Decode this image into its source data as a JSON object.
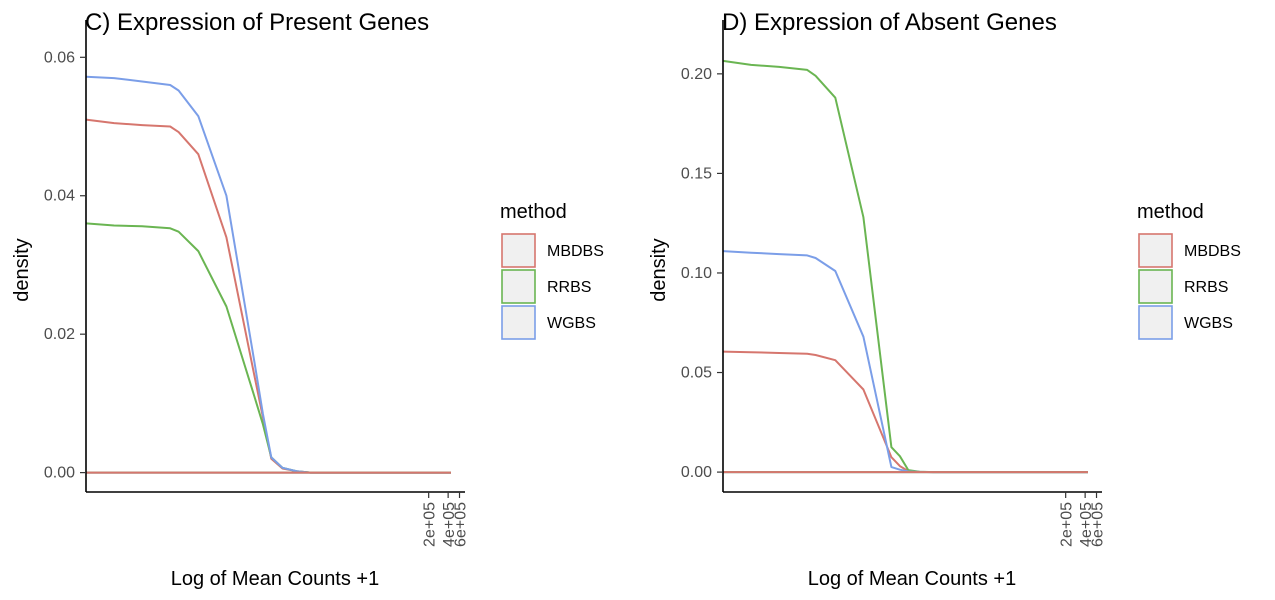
{
  "chart_data": [
    {
      "type": "line",
      "title": "C) Expression of Present Genes",
      "xlabel": "Log of Mean Counts +1",
      "ylabel": "density",
      "yticks": [
        "0.00",
        "0.02",
        "0.04",
        "0.06"
      ],
      "ytick_values": [
        0,
        0.02,
        0.04,
        0.06
      ],
      "ylim": [
        -0.0028,
        0.0625
      ],
      "xticks": [
        "2e+05",
        "4e+05",
        "6e+05"
      ],
      "xtick_values": [
        200000,
        400000,
        600000
      ],
      "xaxis": "log1p",
      "xlim_log": [
        0,
        13.5
      ],
      "legend": {
        "title": "method",
        "position": "right",
        "entries": [
          "MBDBS",
          "RRBS",
          "WGBS"
        ]
      },
      "grid": false,
      "x": [
        0,
        1,
        2,
        3,
        3.3,
        4,
        5,
        6,
        6.3,
        6.6,
        7,
        7.5,
        8,
        9,
        10,
        11,
        12,
        13
      ],
      "series": [
        {
          "name": "MBDBS",
          "color": "#d6766e",
          "values": [
            0.051,
            0.0505,
            0.0502,
            0.05,
            0.0492,
            0.046,
            0.034,
            0.014,
            0.008,
            0.002,
            0.0006,
            0.0002,
            0,
            0,
            0,
            0,
            0,
            0
          ]
        },
        {
          "name": "RRBS",
          "color": "#6ab552",
          "values": [
            0.036,
            0.0357,
            0.0356,
            0.0353,
            0.0348,
            0.032,
            0.024,
            0.011,
            0.007,
            0.0022,
            0.0007,
            0.0002,
            0,
            0,
            0,
            0,
            0,
            0
          ]
        },
        {
          "name": "WGBS",
          "color": "#7b9ee8",
          "values": [
            0.0572,
            0.057,
            0.0565,
            0.056,
            0.0552,
            0.0515,
            0.04,
            0.016,
            0.0085,
            0.0022,
            0.0007,
            0.0002,
            0,
            0,
            0,
            0,
            0,
            0
          ]
        }
      ]
    },
    {
      "type": "line",
      "title": "D) Expression of Absent Genes",
      "xlabel": "Log of Mean Counts +1",
      "ylabel": "density",
      "yticks": [
        "0.00",
        "0.05",
        "0.10",
        "0.15",
        "0.20"
      ],
      "ytick_values": [
        0,
        0.05,
        0.1,
        0.15,
        0.2
      ],
      "ylim": [
        -0.01,
        0.217
      ],
      "xticks": [
        "2e+05",
        "4e+05",
        "6e+05"
      ],
      "xtick_values": [
        200000,
        400000,
        600000
      ],
      "xaxis": "log1p",
      "xlim_log": [
        0,
        13.5
      ],
      "legend": {
        "title": "method",
        "position": "right",
        "entries": [
          "MBDBS",
          "RRBS",
          "WGBS"
        ]
      },
      "grid": false,
      "x": [
        0,
        1,
        2,
        3,
        3.3,
        4,
        5,
        6,
        6.3,
        6.6,
        7,
        7.5,
        8,
        9,
        10,
        11,
        12,
        13
      ],
      "series": [
        {
          "name": "MBDBS",
          "color": "#d6766e",
          "values": [
            0.0605,
            0.0602,
            0.0598,
            0.0594,
            0.0588,
            0.0562,
            0.0415,
            0.0075,
            0.003,
            0.0005,
            0.0001,
            0,
            0,
            0,
            0,
            0,
            0,
            0
          ]
        },
        {
          "name": "RRBS",
          "color": "#6ab552",
          "values": [
            0.2065,
            0.2045,
            0.2035,
            0.202,
            0.199,
            0.188,
            0.128,
            0.0125,
            0.008,
            0.001,
            0.0002,
            0,
            0,
            0,
            0,
            0,
            0,
            0
          ]
        },
        {
          "name": "WGBS",
          "color": "#7b9ee8",
          "values": [
            0.111,
            0.1102,
            0.1095,
            0.1088,
            0.1075,
            0.101,
            0.068,
            0.0025,
            0.0012,
            0.0003,
            0.0001,
            0,
            0,
            0,
            0,
            0,
            0,
            0
          ]
        }
      ]
    }
  ]
}
